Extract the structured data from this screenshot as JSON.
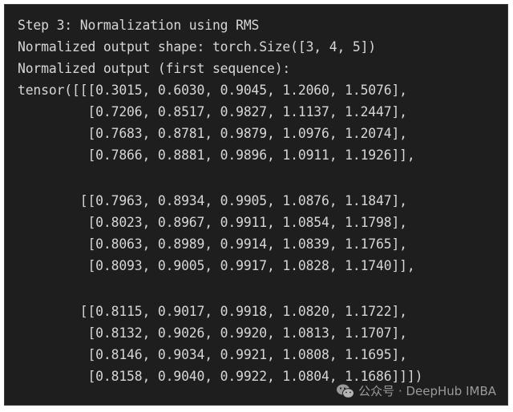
{
  "terminal": {
    "lines": [
      "Step 3: Normalization using RMS",
      "Normalized output shape: torch.Size([3, 4, 5])",
      "Normalized output (first sequence):",
      "tensor([[[0.3015, 0.6030, 0.9045, 1.2060, 1.5076],",
      "         [0.7206, 0.8517, 0.9827, 1.1137, 1.2447],",
      "         [0.7683, 0.8781, 0.9879, 1.0976, 1.2074],",
      "         [0.7866, 0.8881, 0.9896, 1.0911, 1.1926]],",
      "",
      "        [[0.7963, 0.8934, 0.9905, 1.0876, 1.1847],",
      "         [0.8023, 0.8967, 0.9911, 1.0854, 1.1798],",
      "         [0.8063, 0.8989, 0.9914, 1.0839, 1.1765],",
      "         [0.8093, 0.9005, 0.9917, 1.0828, 1.1740]],",
      "",
      "        [[0.8115, 0.9017, 0.9918, 1.0820, 1.1722],",
      "         [0.8132, 0.9026, 0.9920, 1.0813, 1.1707],",
      "         [0.8146, 0.9034, 0.9921, 1.0808, 1.1695],",
      "         [0.8158, 0.9040, 0.9922, 1.0804, 1.1686]]])"
    ]
  },
  "watermark": {
    "icon": "wechat-icon",
    "text": "公众号 · DeepHub IMBA"
  },
  "colors": {
    "background": "#1e1e1e",
    "text": "#d6d6d6"
  }
}
